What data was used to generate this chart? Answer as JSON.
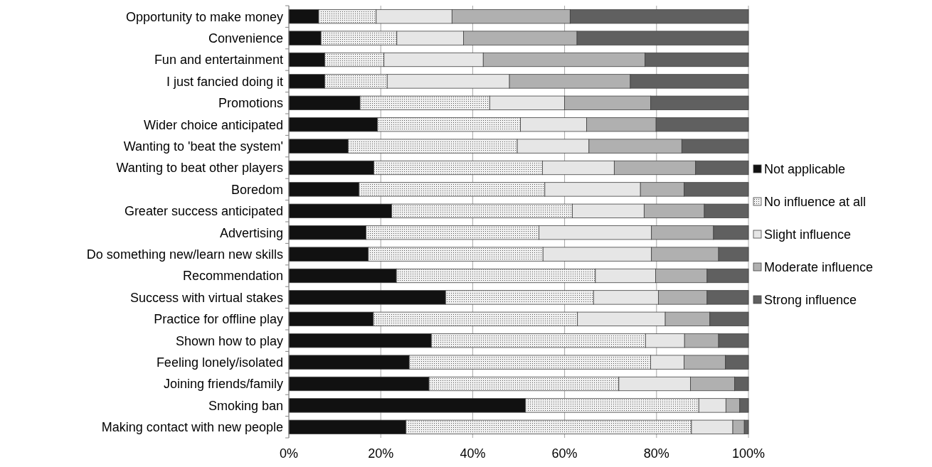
{
  "chart_data": {
    "type": "bar",
    "orientation": "horizontal",
    "stacked": true,
    "grid": "x",
    "legend": "right",
    "categories": [
      "Opportunity to make money",
      "Convenience",
      "Fun and entertainment",
      "I just fancied doing it",
      "Promotions",
      "Wider choice anticipated",
      "Wanting to 'beat the system'",
      "Wanting to beat other players",
      "Boredom",
      "Greater success anticipated",
      "Advertising",
      "Do something new/learn new skills",
      "Recommendation",
      "Success with virtual stakes",
      "Practice for offline play",
      "Shown how to play",
      "Feeling lonely/isolated",
      "Joining friends/family",
      "Smoking ban",
      "Making contact with new people"
    ],
    "xlim": [
      0,
      100
    ],
    "xticks": [
      {
        "value": 0,
        "label": "0%"
      },
      {
        "value": 20,
        "label": "20%"
      },
      {
        "value": 40,
        "label": "40%"
      },
      {
        "value": 60,
        "label": "60%"
      },
      {
        "value": 80,
        "label": "80%"
      },
      {
        "value": 100,
        "label": "100%"
      }
    ],
    "series": [
      {
        "name": "Not applicable",
        "color": "#111111",
        "values": [
          6.5,
          7,
          7.8,
          7.8,
          15.5,
          19.3,
          12.9,
          18.5,
          15.3,
          22.4,
          16.8,
          17.3,
          23.4,
          34.1,
          18.4,
          31,
          26.2,
          30.5,
          51.5,
          25.5
        ]
      },
      {
        "name": "No influence at all",
        "color": "#f0f0f0",
        "values": [
          12.5,
          16.5,
          12.9,
          13.6,
          28.2,
          31.1,
          36.8,
          36.7,
          40.4,
          39.3,
          37.6,
          38,
          43.3,
          32.2,
          44.4,
          46.6,
          52.5,
          41.3,
          37.7,
          62.1
        ]
      },
      {
        "name": "Slight influence",
        "color": "#e6e6e6",
        "values": [
          16.5,
          14.5,
          21.6,
          26.6,
          16.3,
          14.4,
          15.6,
          15.6,
          20.8,
          15.6,
          24.5,
          23.6,
          13.1,
          14.1,
          19.1,
          8.5,
          7.3,
          15.6,
          5.9,
          9
        ]
      },
      {
        "name": "Moderate influence",
        "color": "#b0b0b0",
        "values": [
          25.7,
          24.7,
          35.2,
          26.3,
          18.7,
          15.1,
          20.2,
          17.7,
          9.5,
          13.1,
          13.5,
          14.6,
          11.2,
          10.6,
          9.7,
          7.4,
          9,
          9.6,
          3,
          2.5
        ]
      },
      {
        "name": "Strong influence",
        "color": "#606060",
        "values": [
          38.8,
          37.3,
          22.5,
          25.7,
          21.3,
          20.1,
          14.5,
          11.5,
          14,
          9.6,
          7.6,
          6.5,
          9,
          9,
          8.4,
          6.5,
          5,
          3,
          1.9,
          0.9
        ]
      }
    ]
  }
}
